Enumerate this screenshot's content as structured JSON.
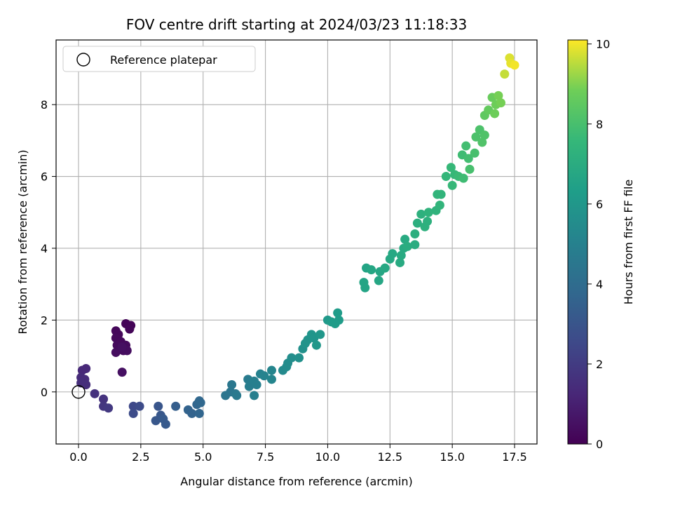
{
  "chart_data": {
    "type": "scatter",
    "title": "FOV centre drift starting at 2024/03/23 11:18:33",
    "xlabel": "Angular distance from reference (arcmin)",
    "ylabel": "Rotation from reference (arcmin)",
    "xlim": [
      -0.9,
      18.4
    ],
    "ylim": [
      -1.45,
      9.8
    ],
    "x_ticks": [
      0.0,
      2.5,
      5.0,
      7.5,
      10.0,
      12.5,
      15.0,
      17.5
    ],
    "x_tick_labels": [
      "0.0",
      "2.5",
      "5.0",
      "7.5",
      "10.0",
      "12.5",
      "15.0",
      "17.5"
    ],
    "y_ticks": [
      0,
      2,
      4,
      6,
      8
    ],
    "y_tick_labels": [
      "0",
      "2",
      "4",
      "6",
      "8"
    ],
    "grid": true,
    "legend": {
      "placement": "top-left",
      "entries": [
        "Reference platepar"
      ]
    },
    "reference_point": {
      "x": 0.0,
      "y": 0.0
    },
    "colorbar": {
      "label": "Hours from first FF file",
      "range": [
        0,
        10.1
      ],
      "ticks": [
        0,
        2,
        4,
        6,
        8,
        10
      ],
      "tick_labels": [
        "0",
        "2",
        "4",
        "6",
        "8",
        "10"
      ],
      "colormap": "viridis"
    },
    "points": [
      {
        "x": 1.9,
        "y": 1.9,
        "c": 0.1
      },
      {
        "x": 2.1,
        "y": 1.85,
        "c": 0.1
      },
      {
        "x": 2.05,
        "y": 1.75,
        "c": 0.15
      },
      {
        "x": 1.5,
        "y": 1.7,
        "c": 0.2
      },
      {
        "x": 1.6,
        "y": 1.6,
        "c": 0.2
      },
      {
        "x": 1.5,
        "y": 1.5,
        "c": 0.25
      },
      {
        "x": 1.7,
        "y": 1.4,
        "c": 0.25
      },
      {
        "x": 1.55,
        "y": 1.3,
        "c": 0.3
      },
      {
        "x": 1.9,
        "y": 1.3,
        "c": 0.3
      },
      {
        "x": 1.7,
        "y": 1.2,
        "c": 0.35
      },
      {
        "x": 1.8,
        "y": 1.15,
        "c": 0.35
      },
      {
        "x": 1.95,
        "y": 1.15,
        "c": 0.4
      },
      {
        "x": 1.5,
        "y": 1.1,
        "c": 0.4
      },
      {
        "x": 1.75,
        "y": 1.25,
        "c": 0.45
      },
      {
        "x": 1.75,
        "y": 0.55,
        "c": 0.5
      },
      {
        "x": 0.3,
        "y": 0.65,
        "c": 1.3
      },
      {
        "x": 0.15,
        "y": 0.6,
        "c": 1.3
      },
      {
        "x": 0.1,
        "y": 0.4,
        "c": 1.4
      },
      {
        "x": 0.25,
        "y": 0.35,
        "c": 1.4
      },
      {
        "x": 0.1,
        "y": 0.25,
        "c": 1.5
      },
      {
        "x": 0.3,
        "y": 0.2,
        "c": 1.5
      },
      {
        "x": 0.65,
        "y": -0.05,
        "c": 1.6
      },
      {
        "x": 1.0,
        "y": -0.2,
        "c": 1.7
      },
      {
        "x": 1.0,
        "y": -0.4,
        "c": 1.8
      },
      {
        "x": 1.2,
        "y": -0.45,
        "c": 1.9
      },
      {
        "x": 2.2,
        "y": -0.4,
        "c": 2.5
      },
      {
        "x": 2.45,
        "y": -0.4,
        "c": 2.6
      },
      {
        "x": 2.2,
        "y": -0.6,
        "c": 2.6
      },
      {
        "x": 3.2,
        "y": -0.4,
        "c": 3.0
      },
      {
        "x": 3.1,
        "y": -0.8,
        "c": 3.1
      },
      {
        "x": 3.3,
        "y": -0.65,
        "c": 3.1
      },
      {
        "x": 3.4,
        "y": -0.75,
        "c": 3.2
      },
      {
        "x": 3.5,
        "y": -0.9,
        "c": 3.2
      },
      {
        "x": 3.9,
        "y": -0.4,
        "c": 3.4
      },
      {
        "x": 4.4,
        "y": -0.5,
        "c": 3.6
      },
      {
        "x": 4.55,
        "y": -0.6,
        "c": 3.6
      },
      {
        "x": 4.75,
        "y": -0.35,
        "c": 3.7
      },
      {
        "x": 4.85,
        "y": -0.6,
        "c": 3.7
      },
      {
        "x": 4.9,
        "y": -0.3,
        "c": 3.8
      },
      {
        "x": 4.85,
        "y": -0.25,
        "c": 3.8
      },
      {
        "x": 5.9,
        "y": -0.1,
        "c": 4.4
      },
      {
        "x": 6.1,
        "y": 0.0,
        "c": 4.4
      },
      {
        "x": 6.15,
        "y": 0.2,
        "c": 4.5
      },
      {
        "x": 6.3,
        "y": -0.05,
        "c": 4.5
      },
      {
        "x": 6.35,
        "y": -0.1,
        "c": 4.6
      },
      {
        "x": 6.8,
        "y": 0.35,
        "c": 4.7
      },
      {
        "x": 6.9,
        "y": 0.25,
        "c": 4.8
      },
      {
        "x": 6.85,
        "y": 0.15,
        "c": 4.8
      },
      {
        "x": 7.05,
        "y": 0.3,
        "c": 4.9
      },
      {
        "x": 7.15,
        "y": 0.2,
        "c": 4.9
      },
      {
        "x": 7.05,
        "y": -0.1,
        "c": 4.9
      },
      {
        "x": 7.3,
        "y": 0.5,
        "c": 5.0
      },
      {
        "x": 7.45,
        "y": 0.45,
        "c": 5.1
      },
      {
        "x": 7.75,
        "y": 0.6,
        "c": 5.2
      },
      {
        "x": 7.75,
        "y": 0.35,
        "c": 5.2
      },
      {
        "x": 8.2,
        "y": 0.6,
        "c": 5.4
      },
      {
        "x": 8.35,
        "y": 0.7,
        "c": 5.5
      },
      {
        "x": 8.4,
        "y": 0.8,
        "c": 5.5
      },
      {
        "x": 8.55,
        "y": 0.95,
        "c": 5.6
      },
      {
        "x": 8.85,
        "y": 0.95,
        "c": 5.7
      },
      {
        "x": 9.0,
        "y": 1.2,
        "c": 5.7
      },
      {
        "x": 9.1,
        "y": 1.35,
        "c": 5.8
      },
      {
        "x": 9.2,
        "y": 1.45,
        "c": 5.8
      },
      {
        "x": 9.35,
        "y": 1.6,
        "c": 5.9
      },
      {
        "x": 9.45,
        "y": 1.5,
        "c": 5.9
      },
      {
        "x": 9.55,
        "y": 1.3,
        "c": 6.0
      },
      {
        "x": 9.7,
        "y": 1.6,
        "c": 6.0
      },
      {
        "x": 10.0,
        "y": 2.0,
        "c": 6.1
      },
      {
        "x": 10.15,
        "y": 1.95,
        "c": 6.2
      },
      {
        "x": 10.3,
        "y": 1.9,
        "c": 6.2
      },
      {
        "x": 10.45,
        "y": 2.0,
        "c": 6.2
      },
      {
        "x": 10.4,
        "y": 2.2,
        "c": 6.2
      },
      {
        "x": 11.45,
        "y": 3.05,
        "c": 6.6
      },
      {
        "x": 11.5,
        "y": 2.9,
        "c": 6.6
      },
      {
        "x": 11.55,
        "y": 3.45,
        "c": 6.6
      },
      {
        "x": 11.75,
        "y": 3.4,
        "c": 6.7
      },
      {
        "x": 12.05,
        "y": 3.1,
        "c": 6.7
      },
      {
        "x": 12.1,
        "y": 3.35,
        "c": 6.7
      },
      {
        "x": 12.3,
        "y": 3.45,
        "c": 6.8
      },
      {
        "x": 12.5,
        "y": 3.7,
        "c": 6.8
      },
      {
        "x": 12.6,
        "y": 3.85,
        "c": 6.8
      },
      {
        "x": 12.9,
        "y": 3.6,
        "c": 6.9
      },
      {
        "x": 12.95,
        "y": 3.8,
        "c": 6.9
      },
      {
        "x": 13.05,
        "y": 4.0,
        "c": 6.9
      },
      {
        "x": 13.1,
        "y": 4.25,
        "c": 6.9
      },
      {
        "x": 13.2,
        "y": 4.05,
        "c": 7.0
      },
      {
        "x": 13.5,
        "y": 4.1,
        "c": 7.0
      },
      {
        "x": 13.5,
        "y": 4.4,
        "c": 7.1
      },
      {
        "x": 13.6,
        "y": 4.7,
        "c": 7.1
      },
      {
        "x": 13.75,
        "y": 4.95,
        "c": 7.2
      },
      {
        "x": 13.9,
        "y": 4.6,
        "c": 7.2
      },
      {
        "x": 14.0,
        "y": 4.75,
        "c": 7.2
      },
      {
        "x": 14.05,
        "y": 5.0,
        "c": 7.3
      },
      {
        "x": 14.35,
        "y": 5.05,
        "c": 7.3
      },
      {
        "x": 14.4,
        "y": 5.5,
        "c": 7.4
      },
      {
        "x": 14.55,
        "y": 5.5,
        "c": 7.4
      },
      {
        "x": 14.5,
        "y": 5.2,
        "c": 7.4
      },
      {
        "x": 14.75,
        "y": 6.0,
        "c": 7.5
      },
      {
        "x": 14.95,
        "y": 6.25,
        "c": 7.6
      },
      {
        "x": 15.0,
        "y": 5.75,
        "c": 7.6
      },
      {
        "x": 15.1,
        "y": 6.05,
        "c": 7.6
      },
      {
        "x": 15.25,
        "y": 6.0,
        "c": 7.7
      },
      {
        "x": 15.45,
        "y": 5.95,
        "c": 7.8
      },
      {
        "x": 15.4,
        "y": 6.6,
        "c": 7.8
      },
      {
        "x": 15.55,
        "y": 6.85,
        "c": 7.9
      },
      {
        "x": 15.65,
        "y": 6.5,
        "c": 7.9
      },
      {
        "x": 15.7,
        "y": 6.2,
        "c": 8.0
      },
      {
        "x": 15.9,
        "y": 6.65,
        "c": 8.0
      },
      {
        "x": 15.95,
        "y": 7.1,
        "c": 8.1
      },
      {
        "x": 16.1,
        "y": 7.3,
        "c": 8.1
      },
      {
        "x": 16.2,
        "y": 6.95,
        "c": 8.2
      },
      {
        "x": 16.3,
        "y": 7.15,
        "c": 8.2
      },
      {
        "x": 16.3,
        "y": 7.7,
        "c": 8.5
      },
      {
        "x": 16.45,
        "y": 7.85,
        "c": 8.6
      },
      {
        "x": 16.6,
        "y": 8.2,
        "c": 8.7
      },
      {
        "x": 16.75,
        "y": 8.0,
        "c": 8.8
      },
      {
        "x": 16.7,
        "y": 7.75,
        "c": 8.8
      },
      {
        "x": 16.85,
        "y": 8.25,
        "c": 8.9
      },
      {
        "x": 16.95,
        "y": 8.05,
        "c": 8.9
      },
      {
        "x": 17.1,
        "y": 8.85,
        "c": 9.6
      },
      {
        "x": 17.3,
        "y": 9.3,
        "c": 9.8
      },
      {
        "x": 17.35,
        "y": 9.15,
        "c": 9.9
      },
      {
        "x": 17.5,
        "y": 9.1,
        "c": 10.0
      }
    ]
  }
}
